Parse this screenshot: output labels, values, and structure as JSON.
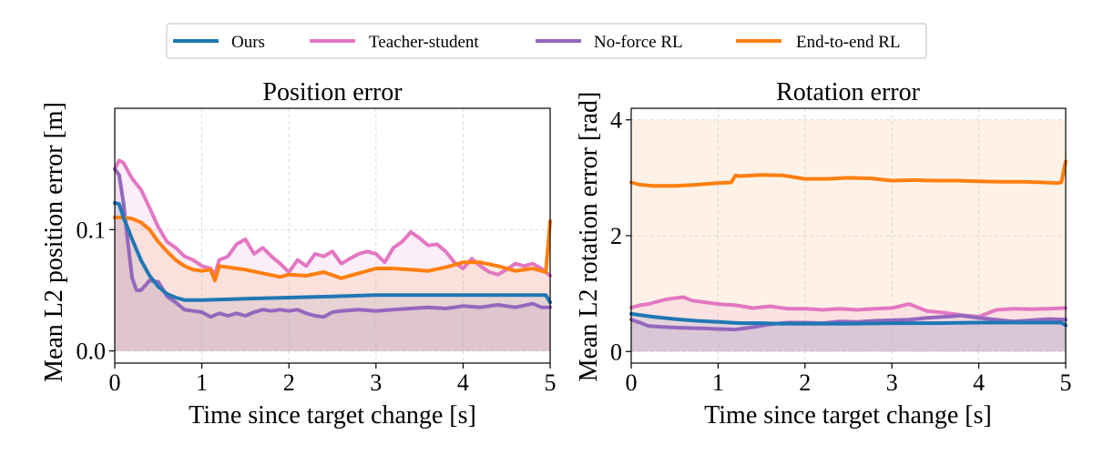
{
  "chart_data": [
    {
      "type": "line",
      "title": "Position error",
      "xlabel": "Time since target change [s]",
      "ylabel": "Mean L2 position error [m]",
      "xlim": [
        0,
        5
      ],
      "ylim": [
        -0.01,
        0.2
      ],
      "xticks": [
        0,
        1,
        2,
        3,
        4,
        5
      ],
      "xtick_labels": [
        "0",
        "1",
        "2",
        "3",
        "4",
        "5"
      ],
      "yticks": [
        0.0,
        0.1
      ],
      "ytick_labels": [
        "0.0",
        "0.1"
      ],
      "grid": true,
      "series": [
        {
          "name": "Ours",
          "x": [
            0,
            0.05,
            0.1,
            0.2,
            0.3,
            0.4,
            0.5,
            0.6,
            0.7,
            0.8,
            1.0,
            1.5,
            2.0,
            2.5,
            3.0,
            3.5,
            4.0,
            4.5,
            4.95,
            5.0
          ],
          "y": [
            0.122,
            0.121,
            0.11,
            0.092,
            0.075,
            0.062,
            0.053,
            0.047,
            0.044,
            0.042,
            0.042,
            0.043,
            0.044,
            0.045,
            0.046,
            0.046,
            0.046,
            0.046,
            0.046,
            0.04
          ]
        },
        {
          "name": "Teacher-student",
          "x": [
            0,
            0.05,
            0.1,
            0.2,
            0.3,
            0.4,
            0.5,
            0.6,
            0.7,
            0.8,
            0.9,
            1.0,
            1.1,
            1.15,
            1.2,
            1.3,
            1.4,
            1.5,
            1.6,
            1.7,
            1.8,
            1.9,
            2.0,
            2.1,
            2.2,
            2.3,
            2.4,
            2.5,
            2.6,
            2.7,
            2.8,
            2.9,
            3.0,
            3.1,
            3.2,
            3.3,
            3.4,
            3.5,
            3.6,
            3.7,
            3.8,
            3.9,
            4.0,
            4.1,
            4.2,
            4.3,
            4.4,
            4.5,
            4.6,
            4.7,
            4.8,
            4.9,
            5.0
          ],
          "y": [
            0.15,
            0.157,
            0.155,
            0.142,
            0.133,
            0.118,
            0.102,
            0.09,
            0.085,
            0.078,
            0.075,
            0.07,
            0.068,
            0.063,
            0.075,
            0.078,
            0.088,
            0.092,
            0.08,
            0.085,
            0.078,
            0.072,
            0.065,
            0.075,
            0.07,
            0.08,
            0.078,
            0.082,
            0.072,
            0.076,
            0.08,
            0.082,
            0.08,
            0.073,
            0.085,
            0.09,
            0.098,
            0.093,
            0.087,
            0.088,
            0.082,
            0.073,
            0.068,
            0.076,
            0.07,
            0.065,
            0.063,
            0.067,
            0.072,
            0.07,
            0.072,
            0.068,
            0.062
          ]
        },
        {
          "name": "No-force RL",
          "x": [
            0,
            0.05,
            0.1,
            0.15,
            0.2,
            0.25,
            0.3,
            0.35,
            0.4,
            0.5,
            0.6,
            0.7,
            0.8,
            0.9,
            1.0,
            1.1,
            1.2,
            1.3,
            1.4,
            1.5,
            1.6,
            1.7,
            1.8,
            1.9,
            2.0,
            2.1,
            2.2,
            2.3,
            2.4,
            2.5,
            2.6,
            2.8,
            3.0,
            3.2,
            3.4,
            3.6,
            3.8,
            4.0,
            4.2,
            4.4,
            4.6,
            4.8,
            4.9,
            5.0
          ],
          "y": [
            0.15,
            0.145,
            0.122,
            0.09,
            0.06,
            0.05,
            0.05,
            0.054,
            0.058,
            0.057,
            0.045,
            0.04,
            0.034,
            0.033,
            0.032,
            0.028,
            0.031,
            0.029,
            0.031,
            0.029,
            0.032,
            0.034,
            0.033,
            0.034,
            0.033,
            0.034,
            0.031,
            0.029,
            0.028,
            0.032,
            0.033,
            0.034,
            0.033,
            0.034,
            0.035,
            0.036,
            0.035,
            0.037,
            0.036,
            0.038,
            0.036,
            0.039,
            0.036,
            0.036
          ]
        },
        {
          "name": "End-to-end RL",
          "x": [
            0,
            0.1,
            0.2,
            0.3,
            0.4,
            0.5,
            0.6,
            0.7,
            0.8,
            0.9,
            1.0,
            1.1,
            1.15,
            1.2,
            1.3,
            1.5,
            1.7,
            1.9,
            2.0,
            2.2,
            2.4,
            2.6,
            2.8,
            3.0,
            3.2,
            3.4,
            3.6,
            3.8,
            4.0,
            4.2,
            4.4,
            4.6,
            4.8,
            4.9,
            4.95,
            5.0
          ],
          "y": [
            0.11,
            0.11,
            0.109,
            0.106,
            0.1,
            0.09,
            0.082,
            0.075,
            0.07,
            0.067,
            0.066,
            0.067,
            0.058,
            0.07,
            0.069,
            0.067,
            0.064,
            0.061,
            0.063,
            0.062,
            0.065,
            0.06,
            0.064,
            0.068,
            0.068,
            0.067,
            0.066,
            0.069,
            0.073,
            0.073,
            0.07,
            0.066,
            0.068,
            0.066,
            0.065,
            0.107
          ]
        }
      ]
    },
    {
      "type": "line",
      "title": "Rotation error",
      "xlabel": "Time since target change [s]",
      "ylabel": "Mean L2 rotation error [rad]",
      "xlim": [
        0,
        5
      ],
      "ylim": [
        -0.2,
        4.2
      ],
      "xticks": [
        0,
        1,
        2,
        3,
        4,
        5
      ],
      "xtick_labels": [
        "0",
        "1",
        "2",
        "3",
        "4",
        "5"
      ],
      "yticks": [
        0,
        2,
        4
      ],
      "ytick_labels": [
        "0",
        "2",
        "4"
      ],
      "grid": true,
      "series": [
        {
          "name": "Ours",
          "x": [
            0,
            0.25,
            0.5,
            0.75,
            1.0,
            1.25,
            1.5,
            1.75,
            2.0,
            2.5,
            3.0,
            3.5,
            4.0,
            4.5,
            4.95,
            5.0
          ],
          "y": [
            0.65,
            0.6,
            0.56,
            0.53,
            0.51,
            0.49,
            0.49,
            0.48,
            0.48,
            0.48,
            0.49,
            0.49,
            0.5,
            0.5,
            0.5,
            0.45
          ]
        },
        {
          "name": "Teacher-student",
          "x": [
            0,
            0.1,
            0.2,
            0.3,
            0.4,
            0.5,
            0.6,
            0.7,
            0.8,
            0.9,
            1.0,
            1.2,
            1.4,
            1.6,
            1.8,
            2.0,
            2.2,
            2.4,
            2.6,
            2.8,
            3.0,
            3.2,
            3.4,
            3.6,
            3.8,
            4.0,
            4.2,
            4.4,
            4.6,
            4.8,
            5.0
          ],
          "y": [
            0.76,
            0.8,
            0.82,
            0.86,
            0.9,
            0.92,
            0.94,
            0.88,
            0.86,
            0.84,
            0.82,
            0.8,
            0.75,
            0.78,
            0.74,
            0.74,
            0.72,
            0.74,
            0.72,
            0.74,
            0.75,
            0.82,
            0.7,
            0.67,
            0.63,
            0.6,
            0.72,
            0.74,
            0.73,
            0.74,
            0.75
          ]
        },
        {
          "name": "No-force RL",
          "x": [
            0,
            0.1,
            0.2,
            0.3,
            0.4,
            0.6,
            0.8,
            1.0,
            1.2,
            1.4,
            1.6,
            1.8,
            2.0,
            2.2,
            2.4,
            2.6,
            2.8,
            3.0,
            3.2,
            3.4,
            3.6,
            3.8,
            4.0,
            4.2,
            4.4,
            4.6,
            4.8,
            5.0
          ],
          "y": [
            0.55,
            0.5,
            0.44,
            0.43,
            0.42,
            0.41,
            0.4,
            0.39,
            0.38,
            0.42,
            0.47,
            0.5,
            0.5,
            0.49,
            0.52,
            0.51,
            0.53,
            0.54,
            0.55,
            0.58,
            0.6,
            0.62,
            0.58,
            0.55,
            0.52,
            0.54,
            0.56,
            0.55
          ]
        },
        {
          "name": "End-to-end RL",
          "x": [
            0,
            0.1,
            0.25,
            0.5,
            0.75,
            1.0,
            1.15,
            1.2,
            1.25,
            1.5,
            1.75,
            2.0,
            2.25,
            2.5,
            2.75,
            3.0,
            3.25,
            3.5,
            3.75,
            4.0,
            4.25,
            4.5,
            4.75,
            4.9,
            4.95,
            5.0
          ],
          "y": [
            2.92,
            2.88,
            2.86,
            2.86,
            2.88,
            2.91,
            2.92,
            3.04,
            3.03,
            3.05,
            3.04,
            2.98,
            2.98,
            3.0,
            2.99,
            2.95,
            2.96,
            2.95,
            2.95,
            2.94,
            2.93,
            2.93,
            2.92,
            2.91,
            2.92,
            3.28
          ]
        }
      ]
    }
  ],
  "legend": {
    "placement": "top-center",
    "items": [
      {
        "label": "Ours",
        "color": "#1f77b4"
      },
      {
        "label": "Teacher-student",
        "color": "#e377c2"
      },
      {
        "label": "No-force RL",
        "color": "#9467bd"
      },
      {
        "label": "End-to-end RL",
        "color": "#ff7f0e"
      }
    ]
  },
  "colors": {
    "Ours": "#1f77b4",
    "Teacher-student": "#e377c2",
    "No-force RL": "#9467bd",
    "End-to-end RL": "#ff7f0e",
    "band_fill": "#cdbcd6",
    "orange_band": "#fde8d2"
  }
}
